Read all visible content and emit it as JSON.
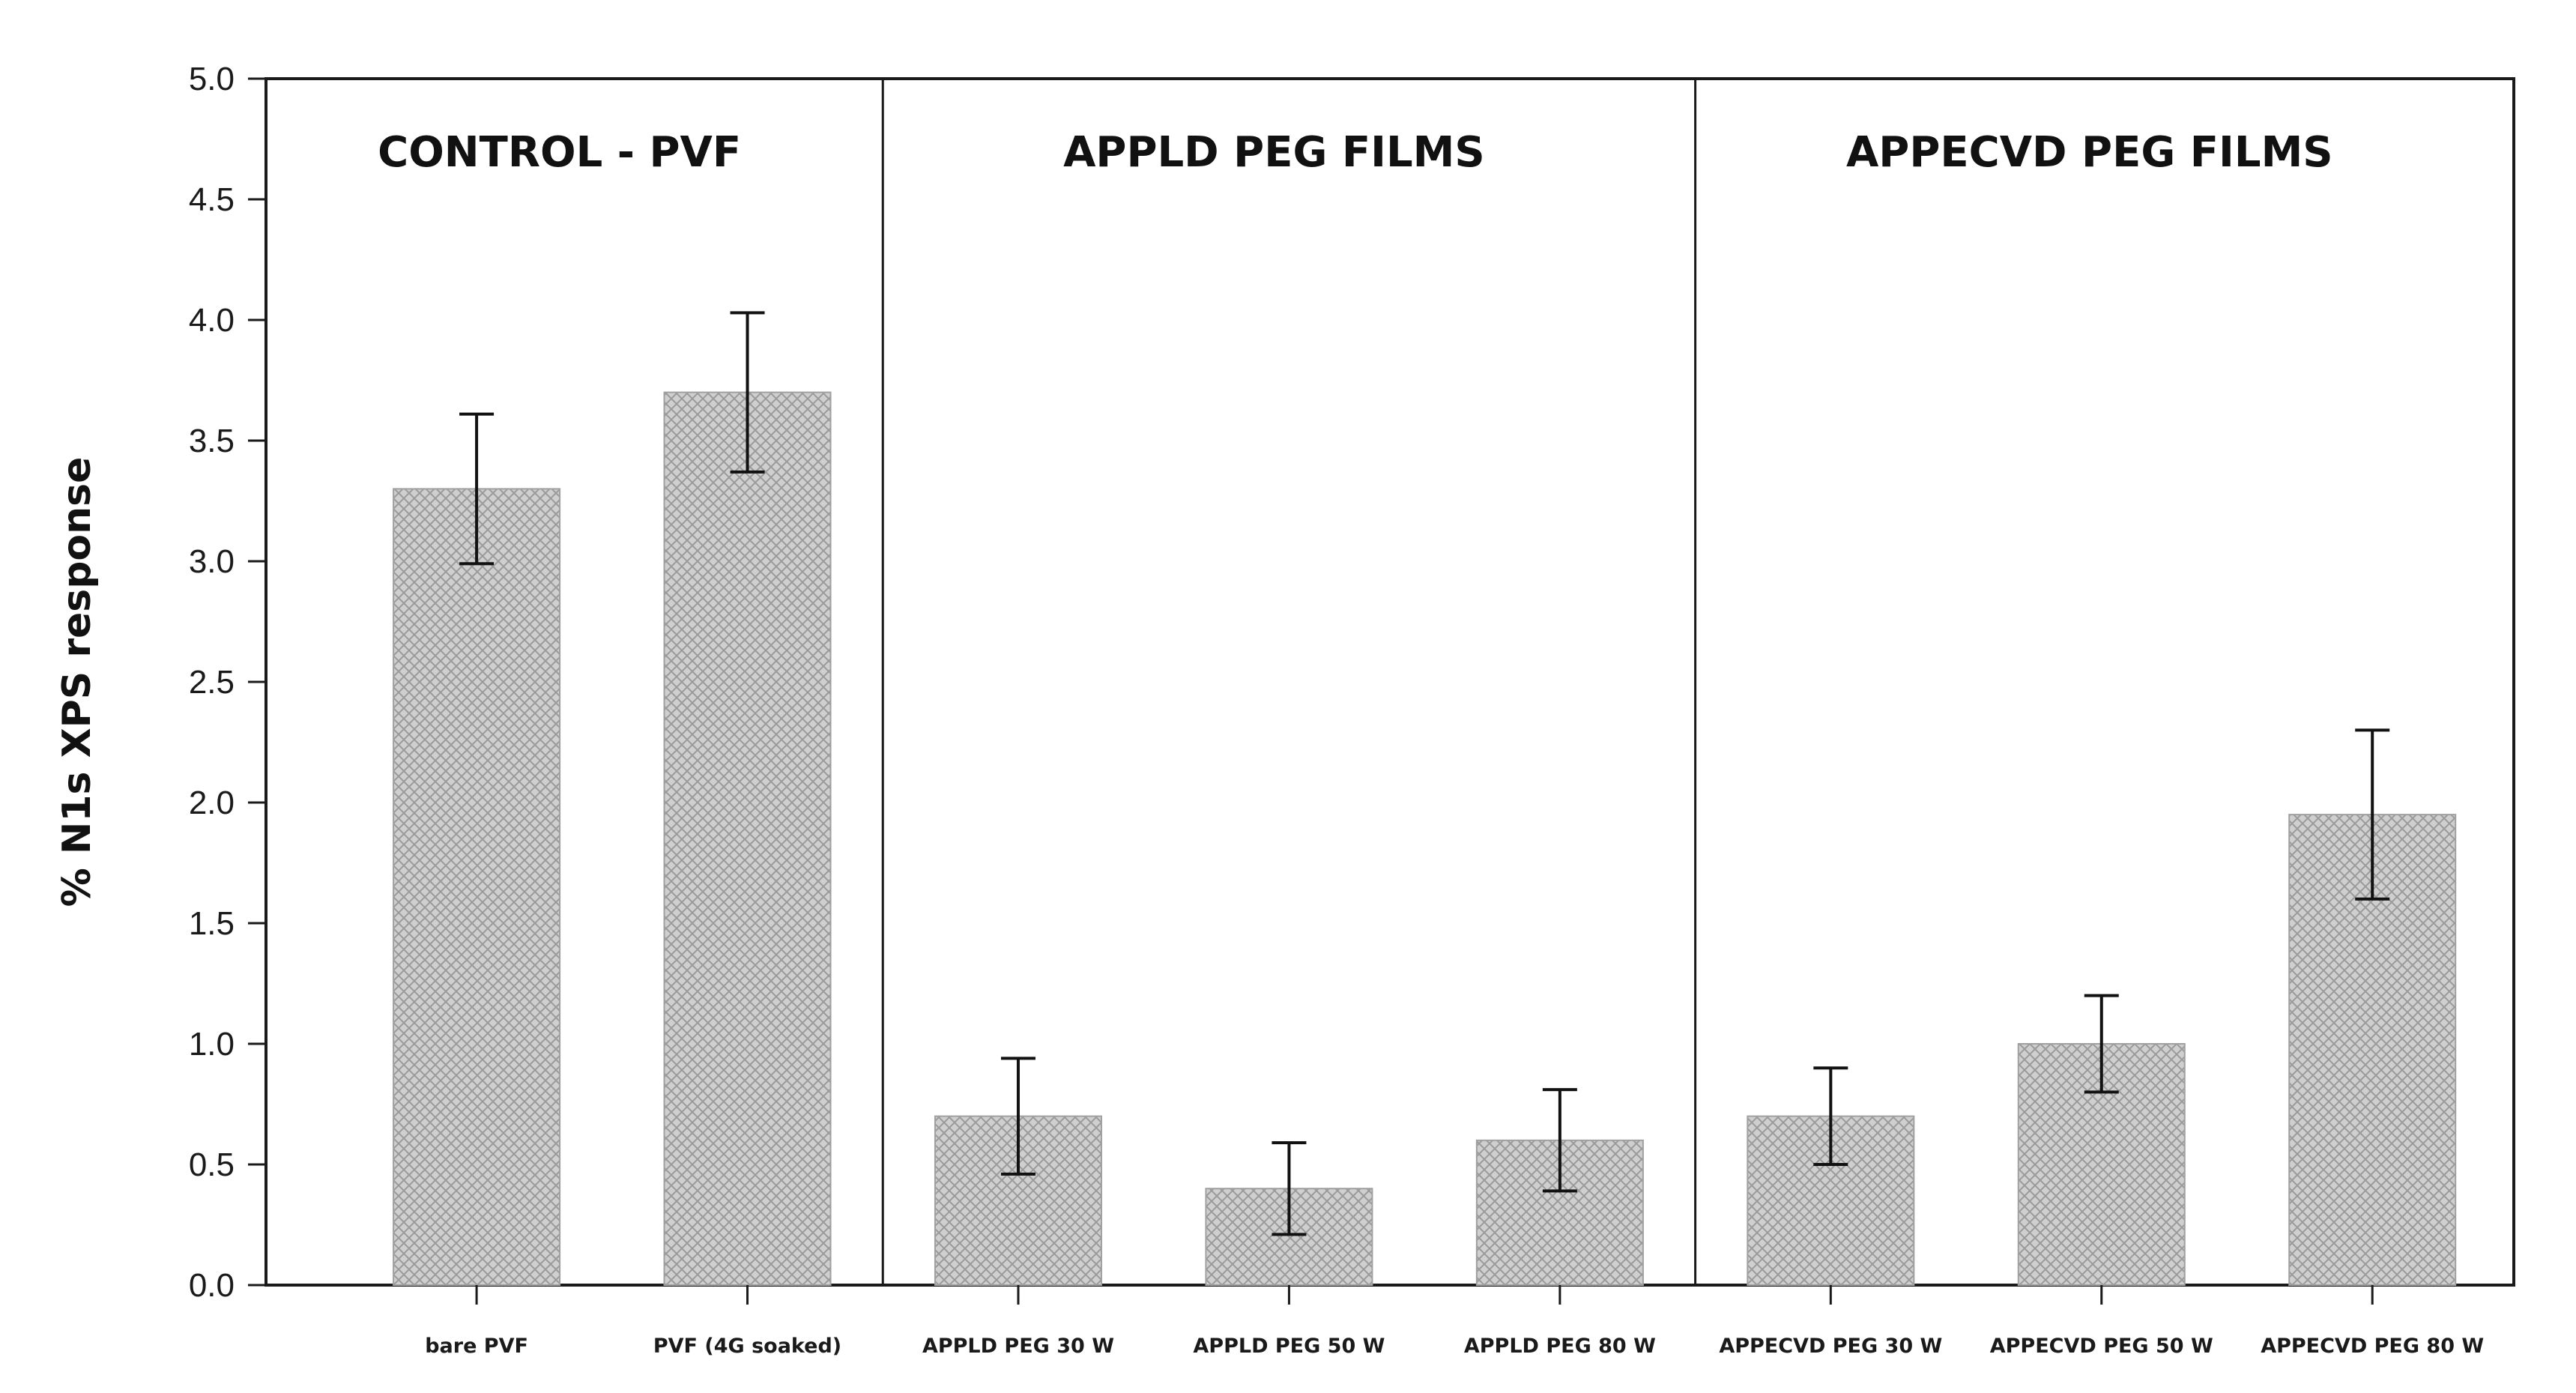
{
  "chart_data": {
    "type": "bar",
    "title": "",
    "xlabel": "",
    "ylabel": "% N1s XPS response",
    "ylim": [
      0,
      5.0
    ],
    "yticks": [
      0.0,
      0.5,
      1.0,
      1.5,
      2.0,
      2.5,
      3.0,
      3.5,
      4.0,
      4.5,
      5.0
    ],
    "ytick_labels": [
      "0.0",
      "0.5",
      "1.0",
      "1.5",
      "2.0",
      "2.5",
      "3.0",
      "3.5",
      "4.0",
      "4.5",
      "5.0"
    ],
    "categories": [
      "bare PVF",
      "PVF (4G soaked)",
      "APPLD PEG 30 W",
      "APPLD PEG 50 W",
      "APPLD PEG 80 W",
      "APPECVD PEG 30 W",
      "APPECVD PEG 50 W",
      "APPECVD PEG 80 W"
    ],
    "values": [
      3.3,
      3.7,
      0.7,
      0.4,
      0.6,
      0.7,
      1.0,
      1.95
    ],
    "error_low": [
      2.99,
      3.37,
      0.46,
      0.21,
      0.39,
      0.5,
      0.8,
      1.6
    ],
    "error_high": [
      3.61,
      4.03,
      0.94,
      0.59,
      0.81,
      0.9,
      1.2,
      2.3
    ],
    "groups": [
      {
        "label": "CONTROL - PVF",
        "start": 0,
        "end": 1
      },
      {
        "label": "APPLD PEG FILMS",
        "start": 2,
        "end": 4
      },
      {
        "label": "APPECVD PEG FILMS",
        "start": 5,
        "end": 7
      }
    ],
    "grid": false,
    "bar_fill": "crosshatch-gray",
    "colors": {
      "bar": "#c8c8c8",
      "hatch": "#9a9a9a",
      "axis": "#1a1a1a"
    }
  }
}
